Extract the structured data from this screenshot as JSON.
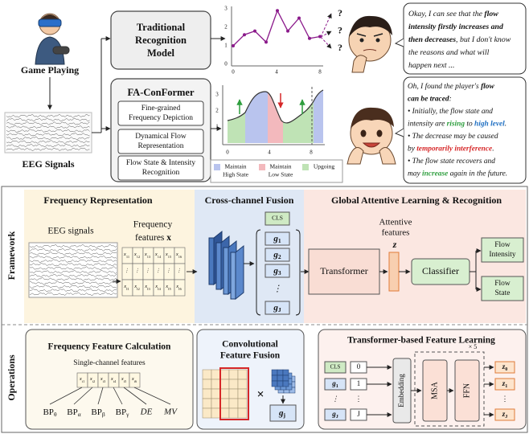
{
  "top": {
    "game_playing": "Game Playing",
    "eeg_signals": "EEG Signals",
    "traditional_model": [
      "Traditional",
      "Recognition",
      "Model"
    ],
    "fa_conformer": {
      "title": "FA-ConFormer",
      "modules": [
        [
          "Fine-grained",
          "Frequency Depiction"
        ],
        [
          "Dynamical Flow",
          "Representation"
        ],
        [
          "Flow State & Intensity",
          "Recognition"
        ]
      ]
    },
    "plot1": {
      "yticks": [
        "0",
        "1",
        "2",
        "3"
      ],
      "xticks": [
        "0",
        "4",
        "8"
      ],
      "questions": [
        "?",
        "?",
        "?"
      ]
    },
    "plot2": {
      "yticks": [
        "1",
        "2",
        "3"
      ],
      "xticks": [
        "0",
        "4",
        "8"
      ],
      "legend": [
        [
          "Maintain",
          "High State"
        ],
        [
          "Maintain",
          "Low State"
        ],
        [
          "Upgoing"
        ]
      ]
    },
    "speech1": [
      [
        {
          "text": "Okay, I can see that the "
        },
        {
          "text": "flow",
          "bold": true
        }
      ],
      [
        {
          "text": "intensity firstly increases and",
          "bold": true
        }
      ],
      [
        {
          "text": "then decreases",
          "bold": true
        },
        {
          "text": ", but I don't know"
        }
      ],
      [
        {
          "text": "the reasons and what will"
        }
      ],
      [
        {
          "text": "happen next ..."
        }
      ]
    ],
    "speech2": [
      [
        {
          "text": "Oh, I found the player's "
        },
        {
          "text": "flow",
          "bold": true
        }
      ],
      [
        {
          "text": "can be traced",
          "bold": true
        },
        {
          "text": ":"
        }
      ],
      [
        {
          "text": "• Initially, the flow state and"
        }
      ],
      [
        {
          "text": "intensity are "
        },
        {
          "text": "rising",
          "bold": true,
          "color": "#2e9e3e"
        },
        {
          "text": " to "
        },
        {
          "text": "high level",
          "bold": true,
          "color": "#1f6fc2"
        },
        {
          "text": "."
        }
      ],
      [
        {
          "text": "• The decrease may be caused"
        }
      ],
      [
        {
          "text": "by "
        },
        {
          "text": "temporarily interference",
          "bold": true,
          "color": "#d62728"
        },
        {
          "text": "."
        }
      ],
      [
        {
          "text": "• The flow state recovers and"
        }
      ],
      [
        {
          "text": "may "
        },
        {
          "text": "increase",
          "bold": true,
          "color": "#2e9e3e"
        },
        {
          "text": " again in the future."
        }
      ]
    ]
  },
  "framework": {
    "row_label": "Framework",
    "freq_rep": {
      "title": "Frequency Representation",
      "eeg": "EEG signals",
      "features": [
        "Frequency",
        [
          {
            "text": "features "
          },
          {
            "text": "x",
            "bold": true
          }
        ]
      ],
      "grid": [
        [
          {
            "t": "x",
            "sub": "11"
          },
          {
            "t": "x",
            "sub": "12"
          },
          {
            "t": "x",
            "sub": "13"
          },
          {
            "t": "x",
            "sub": "14"
          },
          {
            "t": "x",
            "sub": "15"
          },
          {
            "t": "x",
            "sub": "16"
          }
        ],
        [
          "⋮",
          "⋮",
          "⋮",
          "⋮",
          "⋮",
          "⋮"
        ],
        [
          {
            "t": "x",
            "sub": "I1"
          },
          {
            "t": "x",
            "sub": "I2"
          },
          {
            "t": "x",
            "sub": "I3"
          },
          {
            "t": "x",
            "sub": "I4"
          },
          {
            "t": "x",
            "sub": "I5"
          },
          {
            "t": "x",
            "sub": "I6"
          }
        ]
      ]
    },
    "cross": {
      "title": "Cross-channel Fusion",
      "tokens": [
        "CLS",
        {
          "t": "g",
          "sub": "1"
        },
        {
          "t": "g",
          "sub": "2"
        },
        {
          "t": "g",
          "sub": "3"
        },
        "⋮",
        {
          "t": "g",
          "sub": "J"
        }
      ]
    },
    "global": {
      "title": "Global Attentive Learning & Recognition",
      "attentive": [
        "Attentive",
        "features"
      ],
      "z": "z",
      "transformer": "Transformer",
      "classifier": "Classifier",
      "outputs": [
        [
          "Flow",
          "Intensity"
        ],
        [
          "Flow",
          "State"
        ]
      ]
    }
  },
  "operations": {
    "row_label": "Operations",
    "freq_calc": {
      "title": "Frequency Feature Calculation",
      "subtitle": "Single-channel features",
      "cells": [
        {
          "t": "x",
          "sub": "i1"
        },
        {
          "t": "x",
          "sub": "i2"
        },
        {
          "t": "x",
          "sub": "i3"
        },
        {
          "t": "x",
          "sub": "i4"
        },
        {
          "t": "x",
          "sub": "i5"
        },
        {
          "t": "x",
          "sub": "i6"
        }
      ],
      "features": [
        {
          "t": "BP",
          "sub": "θ"
        },
        {
          "t": "BP",
          "sub": "α"
        },
        {
          "t": "BP",
          "sub": "β"
        },
        {
          "t": "BP",
          "sub": "γ"
        },
        "DE",
        "MV"
      ]
    },
    "conv": {
      "title": [
        "Convolutional",
        "Feature Fusion"
      ],
      "times": "×",
      "output": {
        "t": "g",
        "sub": "j"
      }
    },
    "tfl": {
      "title": "Transformer-based Feature Learning",
      "inputs": [
        [
          "CLS",
          "0"
        ],
        [
          {
            "t": "g",
            "sub": "1"
          },
          "1"
        ],
        [
          "⋮",
          "⋮"
        ],
        [
          {
            "t": "g",
            "sub": "J"
          },
          "J"
        ]
      ],
      "embedding": "Embedding",
      "repeat": "× 5",
      "msa": "MSA",
      "ffn": "FFN",
      "outputs": [
        {
          "t": "z",
          "sub": "0"
        },
        {
          "t": "z",
          "sub": "1"
        },
        "⋮",
        {
          "t": "z",
          "sub": "J"
        }
      ]
    }
  }
}
